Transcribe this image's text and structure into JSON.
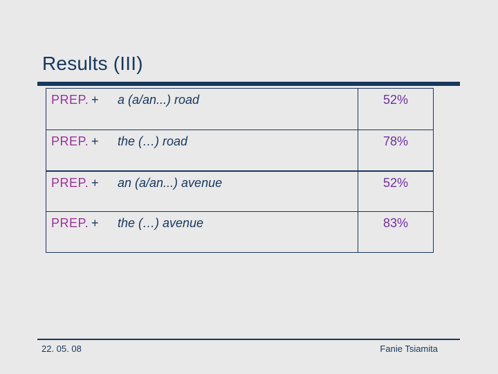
{
  "slide": {
    "title": "Results (III)",
    "table": {
      "rows": [
        {
          "label": "PREP.",
          "operator": "+",
          "phrase": "a (a/an...) road",
          "value": "52%"
        },
        {
          "label": "PREP.",
          "operator": "+",
          "phrase": "the (…) road",
          "value": "78%"
        },
        {
          "label": "PREP.",
          "operator": "+",
          "phrase": "an (a/an...) avenue",
          "value": "52%"
        },
        {
          "label": "PREP.",
          "operator": "+",
          "phrase": "the (…) avenue",
          "value": "83%"
        }
      ]
    },
    "footer": {
      "date": "22. 05. 08",
      "author": "Fanie Tsiamita"
    },
    "colors": {
      "background": "#E9E9E9",
      "navy": "#17375E",
      "label_purple": "#993399",
      "value_purple": "#7030A0"
    }
  }
}
